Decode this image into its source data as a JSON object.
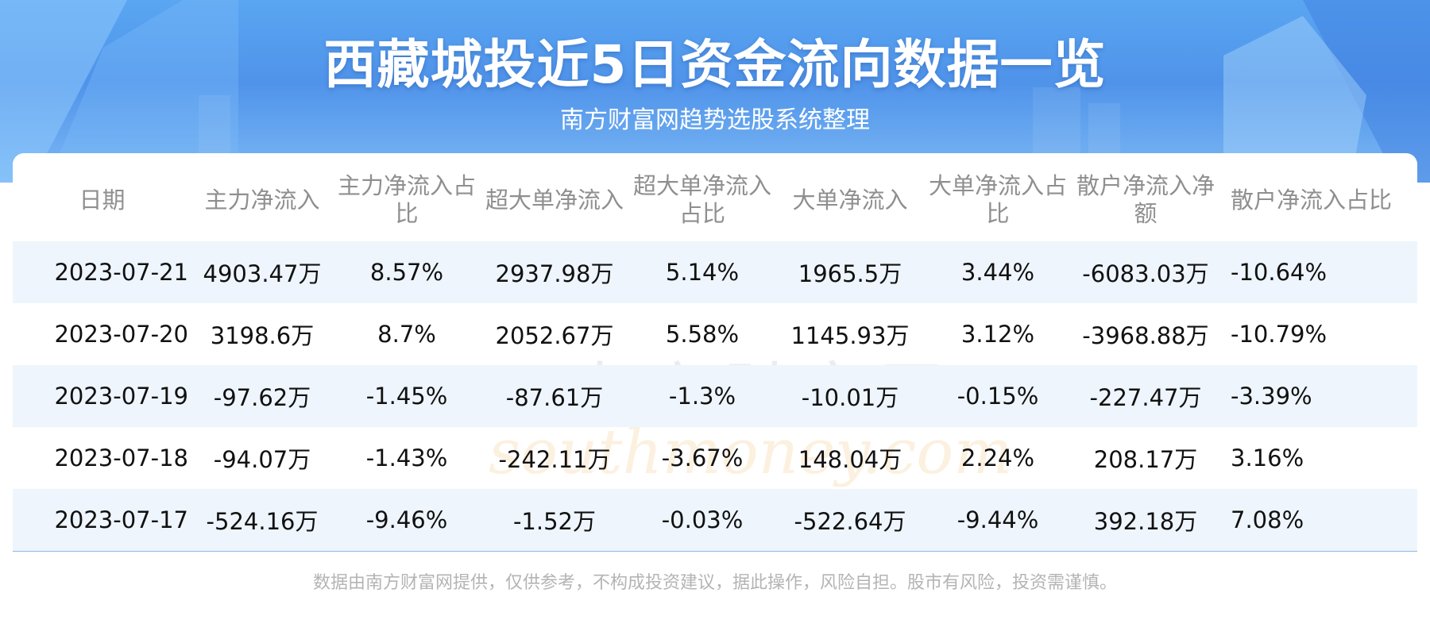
{
  "header": {
    "title": "西藏城投近5日资金流向数据一览",
    "subtitle": "南方财富网趋势选股系统整理"
  },
  "table": {
    "columns": [
      "日期",
      "主力净流入",
      "主力净流入占比",
      "超大单净流入",
      "超大单净流入占比",
      "大单净流入",
      "大单净流入占比",
      "散户净流入净额",
      "散户净流入占比"
    ],
    "rows": [
      [
        "2023-07-21",
        "4903.47万",
        "8.57%",
        "2937.98万",
        "5.14%",
        "1965.5万",
        "3.44%",
        "-6083.03万",
        "-10.64%"
      ],
      [
        "2023-07-20",
        "3198.6万",
        "8.7%",
        "2052.67万",
        "5.58%",
        "1145.93万",
        "3.12%",
        "-3968.88万",
        "-10.79%"
      ],
      [
        "2023-07-19",
        "-97.62万",
        "-1.45%",
        "-87.61万",
        "-1.3%",
        "-10.01万",
        "-0.15%",
        "-227.47万",
        "-3.39%"
      ],
      [
        "2023-07-18",
        "-94.07万",
        "-1.43%",
        "-242.11万",
        "-3.67%",
        "148.04万",
        "2.24%",
        "208.17万",
        "3.16%"
      ],
      [
        "2023-07-17",
        "-524.16万",
        "-9.46%",
        "-1.52万",
        "-0.03%",
        "-522.64万",
        "-9.44%",
        "392.18万",
        "7.08%"
      ]
    ]
  },
  "watermark": {
    "cn": "南方财富网",
    "en": "southmoney.com"
  },
  "footer": {
    "disclaimer": "数据由南方财富网提供，仅供参考，不构成投资建议，据此操作，风险自担。股市有风险，投资需谨慎。"
  },
  "colors": {
    "banner": "#4f93ea",
    "row_shade": "#eef5fd",
    "header_text": "#8f8f8f"
  }
}
